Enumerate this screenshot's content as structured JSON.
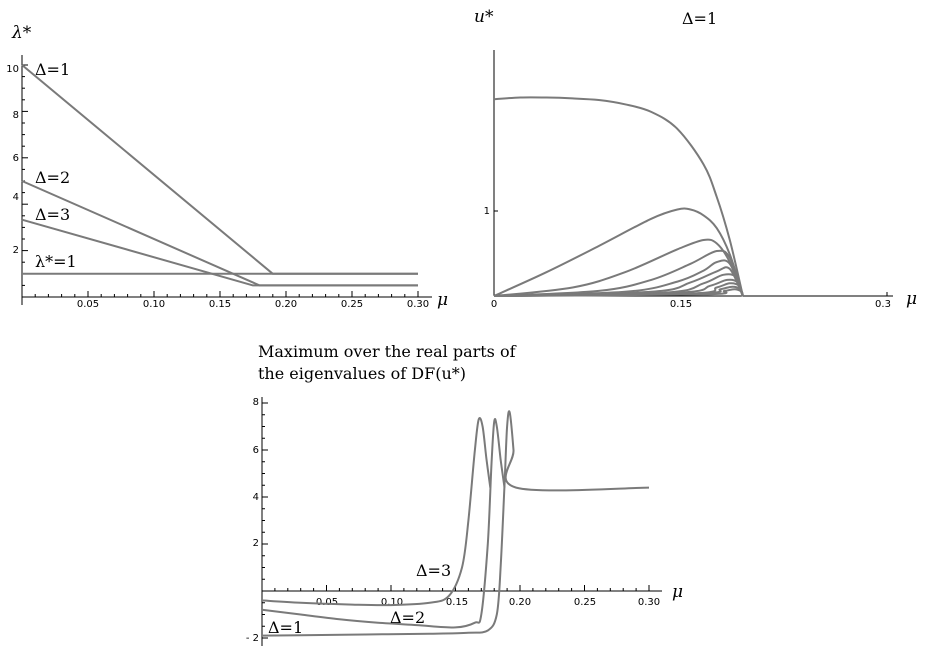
{
  "chart_data": [
    {
      "type": "line",
      "ylabel": "λ*",
      "xlabel": "μ",
      "xlim": [
        0,
        0.3
      ],
      "ylim": [
        0,
        10
      ],
      "x_ticks": [
        "0.05",
        "0.10",
        "0.15",
        "0.20",
        "0.25",
        "0.30"
      ],
      "y_ticks": [
        "2",
        "4",
        "6",
        "8",
        "10"
      ],
      "series": [
        {
          "name": "Δ=1",
          "x": [
            0,
            0.19,
            0.3
          ],
          "y": [
            10,
            1,
            1
          ]
        },
        {
          "name": "Δ=2",
          "x": [
            0,
            0.18,
            0.3
          ],
          "y": [
            5,
            0.5,
            0.5
          ]
        },
        {
          "name": "Δ=3",
          "x": [
            0,
            0.175,
            0.3
          ],
          "y": [
            3.33,
            0.5,
            0.5
          ]
        },
        {
          "name": "λ*=1",
          "x": [
            0,
            0.3
          ],
          "y": [
            1,
            1
          ]
        }
      ],
      "annotations": [
        {
          "text": "Δ=1",
          "x": 0.01,
          "y": 10.0
        },
        {
          "text": "Δ=2",
          "x": 0.01,
          "y": 5.3
        },
        {
          "text": "Δ=3",
          "x": 0.01,
          "y": 3.4
        },
        {
          "text": "λ*=1",
          "x": 0.01,
          "y": 1.4
        }
      ]
    },
    {
      "type": "line",
      "title": "Δ=1",
      "ylabel": "u*",
      "xlabel": "μ",
      "xlim": [
        0,
        0.3
      ],
      "ylim": [
        0,
        2.9
      ],
      "x_ticks": [
        "0",
        "0.15",
        "0.3"
      ],
      "y_ticks": [
        "1"
      ],
      "series": [
        {
          "x": [
            0,
            0.02,
            0.04,
            0.06,
            0.08,
            0.1,
            0.12,
            0.14,
            0.16,
            0.17,
            0.18,
            0.19
          ],
          "y": [
            2.32,
            2.34,
            2.34,
            2.33,
            2.31,
            2.26,
            2.17,
            1.97,
            1.55,
            1.17,
            0.66,
            0.0
          ]
        },
        {
          "x": [
            0,
            0.04,
            0.08,
            0.12,
            0.14,
            0.15,
            0.16,
            0.17,
            0.18,
            0.19
          ],
          "y": [
            0.0,
            0.28,
            0.59,
            0.91,
            1.02,
            1.02,
            0.95,
            0.8,
            0.49,
            0.0
          ]
        },
        {
          "x": [
            0,
            0.06,
            0.1,
            0.14,
            0.16,
            0.17,
            0.18,
            0.19
          ],
          "y": [
            0.0,
            0.1,
            0.28,
            0.55,
            0.66,
            0.62,
            0.4,
            0.0
          ]
        },
        {
          "x": [
            0,
            0.08,
            0.12,
            0.15,
            0.17,
            0.18,
            0.19
          ],
          "y": [
            0.0,
            0.06,
            0.19,
            0.38,
            0.53,
            0.45,
            0.0
          ]
        },
        {
          "x": [
            0,
            0.1,
            0.14,
            0.16,
            0.17,
            0.18,
            0.19
          ],
          "y": [
            0.0,
            0.05,
            0.17,
            0.3,
            0.4,
            0.38,
            0.0
          ]
        },
        {
          "x": [
            0,
            0.12,
            0.15,
            0.17,
            0.18,
            0.19
          ],
          "y": [
            0.0,
            0.05,
            0.16,
            0.29,
            0.32,
            0.0
          ]
        },
        {
          "x": [
            0,
            0.13,
            0.16,
            0.175,
            0.185,
            0.19
          ],
          "y": [
            0.0,
            0.04,
            0.15,
            0.25,
            0.22,
            0.0
          ]
        },
        {
          "x": [
            0,
            0.14,
            0.165,
            0.178,
            0.186,
            0.19
          ],
          "y": [
            0.0,
            0.04,
            0.12,
            0.19,
            0.16,
            0.0
          ]
        },
        {
          "x": [
            0,
            0.15,
            0.17,
            0.18,
            0.187,
            0.19
          ],
          "y": [
            0.0,
            0.03,
            0.1,
            0.15,
            0.12,
            0.0
          ]
        },
        {
          "x": [
            0,
            0.155,
            0.173,
            0.182,
            0.188,
            0.19
          ],
          "y": [
            0.0,
            0.03,
            0.08,
            0.11,
            0.08,
            0.0
          ]
        },
        {
          "x": [
            0,
            0.16,
            0.176,
            0.184,
            0.189,
            0.19
          ],
          "y": [
            0.0,
            0.02,
            0.06,
            0.08,
            0.05,
            0.0
          ]
        }
      ]
    },
    {
      "type": "line",
      "title": "Maximum over the real parts of the eigenvalues of DF(u*)",
      "title_lines": [
        "Maximum over the real parts of",
        "the eigenvalues of  DF(u*)"
      ],
      "xlabel": "μ",
      "xlim": [
        0,
        0.3
      ],
      "ylim": [
        -2,
        8
      ],
      "x_ticks": [
        "0.05",
        "0.10",
        "0.15",
        "0.20",
        "0.25",
        "0.30"
      ],
      "y_ticks": [
        "- 2",
        "2",
        "4",
        "6",
        "8"
      ],
      "series": [
        {
          "name": "Δ=1",
          "x": [
            0,
            0.03,
            0.08,
            0.13,
            0.16,
            0.175,
            0.182,
            0.185,
            0.188,
            0.19,
            0.192,
            0.195,
            0.197,
            0.3
          ],
          "y": [
            -1.9,
            -1.88,
            -1.85,
            -1.82,
            -1.78,
            -1.68,
            -1.0,
            1.0,
            4.5,
            7.0,
            7.6,
            6.0,
            4.4,
            4.4
          ]
        },
        {
          "name": "Δ=2",
          "x": [
            0,
            0.03,
            0.06,
            0.09,
            0.12,
            0.15,
            0.165,
            0.17,
            0.175,
            0.178,
            0.18,
            0.182,
            0.185,
            0.188
          ],
          "y": [
            -0.8,
            -1.0,
            -1.2,
            -1.35,
            -1.45,
            -1.55,
            -1.35,
            -1.0,
            2.0,
            5.5,
            7.2,
            7.0,
            5.6,
            4.4
          ]
        },
        {
          "name": "Δ=3",
          "x": [
            0,
            0.03,
            0.07,
            0.1,
            0.13,
            0.145,
            0.155,
            0.16,
            0.165,
            0.168,
            0.171,
            0.174,
            0.177
          ],
          "y": [
            -0.4,
            -0.5,
            -0.58,
            -0.6,
            -0.5,
            -0.2,
            1.0,
            3.0,
            6.0,
            7.3,
            7.0,
            5.6,
            4.4
          ]
        }
      ],
      "annotations": [
        {
          "text": "Δ=3",
          "x": 0.11,
          "y": 0.4
        },
        {
          "text": "Δ=2",
          "x": 0.09,
          "y": -1.55
        },
        {
          "text": "Δ=1",
          "x": 0.002,
          "y": -1.55
        }
      ]
    }
  ]
}
